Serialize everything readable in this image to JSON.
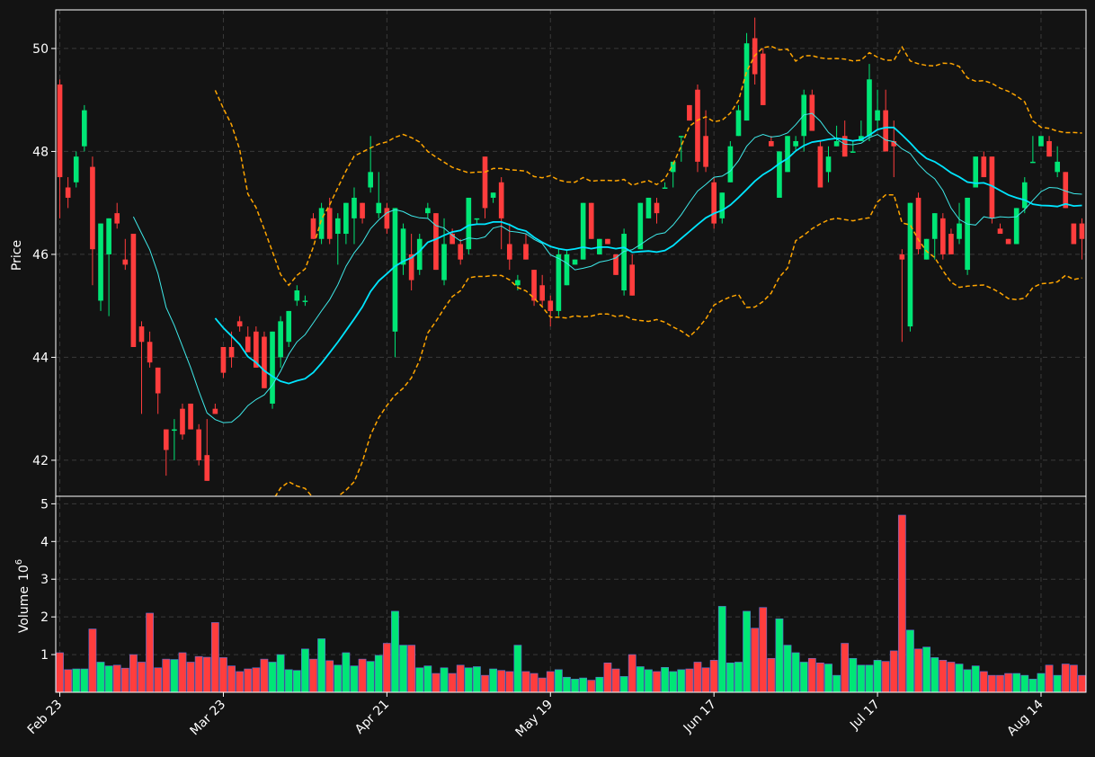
{
  "chart_data": {
    "type": "candlestick",
    "theme": {
      "background": "#131313",
      "up_color": "#00e676",
      "down_color": "#ff3d3d",
      "ma_fast_color": "#3ee8e8",
      "ma_slow_color": "#00e5ff",
      "band_color": "#ffa500",
      "grid_color": "#3a3a3a",
      "axis_text_color": "#ffffff"
    },
    "price_axis": {
      "label": "Price",
      "ylim": [
        41.3,
        50.75
      ],
      "ticks": [
        42,
        44,
        46,
        48,
        50
      ]
    },
    "volume_axis": {
      "label": "Volume",
      "unit_suffix": "6",
      "ylim": [
        0,
        5.2
      ],
      "ticks": [
        1,
        2,
        3,
        4,
        5
      ]
    },
    "x_ticks": [
      {
        "index": 0,
        "label": "Feb 23"
      },
      {
        "index": 20,
        "label": "Mar 23"
      },
      {
        "index": 40,
        "label": "Apr 21"
      },
      {
        "index": 60,
        "label": "May 19"
      },
      {
        "index": 80,
        "label": "Jun 17"
      },
      {
        "index": 100,
        "label": "Jul 17"
      },
      {
        "index": 120,
        "label": "Aug 14"
      }
    ],
    "grid": true,
    "ohlc": [
      [
        49.3,
        49.4,
        46.7,
        47.5
      ],
      [
        47.3,
        47.5,
        46.9,
        47.1
      ],
      [
        47.4,
        48.0,
        47.3,
        47.9
      ],
      [
        48.1,
        48.9,
        48.0,
        48.8
      ],
      [
        47.7,
        47.9,
        45.4,
        46.1
      ],
      [
        45.1,
        46.6,
        44.9,
        46.6
      ],
      [
        46.0,
        46.7,
        44.8,
        46.7
      ],
      [
        46.8,
        47.0,
        46.5,
        46.6
      ],
      [
        45.9,
        46.3,
        45.7,
        45.8
      ],
      [
        46.4,
        46.4,
        44.2,
        44.2
      ],
      [
        44.6,
        44.7,
        42.9,
        44.3
      ],
      [
        44.3,
        44.5,
        43.8,
        43.9
      ],
      [
        43.8,
        43.8,
        42.9,
        43.3
      ],
      [
        42.6,
        42.6,
        41.7,
        42.2
      ],
      [
        42.6,
        42.8,
        42.0,
        42.6
      ],
      [
        43.0,
        43.1,
        42.4,
        42.5
      ],
      [
        43.1,
        43.1,
        42.6,
        42.6
      ],
      [
        42.6,
        42.7,
        41.9,
        42.0
      ],
      [
        42.1,
        42.8,
        41.6,
        41.6
      ],
      [
        43.0,
        43.1,
        42.9,
        42.9
      ],
      [
        44.2,
        44.2,
        43.6,
        43.7
      ],
      [
        44.2,
        44.5,
        43.8,
        44.0
      ],
      [
        44.7,
        44.8,
        44.5,
        44.6
      ],
      [
        44.4,
        44.6,
        44.1,
        44.1
      ],
      [
        44.5,
        44.6,
        43.8,
        43.8
      ],
      [
        44.4,
        44.5,
        43.4,
        43.4
      ],
      [
        43.1,
        44.5,
        43.0,
        44.5
      ],
      [
        44.0,
        44.8,
        43.8,
        44.7
      ],
      [
        44.3,
        44.9,
        44.2,
        44.9
      ],
      [
        45.1,
        45.4,
        45.0,
        45.3
      ],
      [
        45.1,
        45.2,
        45.0,
        45.1
      ],
      [
        46.7,
        46.8,
        46.3,
        46.3
      ],
      [
        46.3,
        47.0,
        46.2,
        46.9
      ],
      [
        46.9,
        47.1,
        46.2,
        46.3
      ],
      [
        46.4,
        46.8,
        45.8,
        46.7
      ],
      [
        46.4,
        47.0,
        46.2,
        47.0
      ],
      [
        46.7,
        47.3,
        46.2,
        47.1
      ],
      [
        47.0,
        47.0,
        46.6,
        46.7
      ],
      [
        47.3,
        48.3,
        47.2,
        47.6
      ],
      [
        46.8,
        47.6,
        46.7,
        47.0
      ],
      [
        46.9,
        47.0,
        46.4,
        46.5
      ],
      [
        44.5,
        46.9,
        44.0,
        46.9
      ],
      [
        45.8,
        46.6,
        45.6,
        46.5
      ],
      [
        46.0,
        46.4,
        45.3,
        45.5
      ],
      [
        45.7,
        46.4,
        45.6,
        46.3
      ],
      [
        46.8,
        47.0,
        46.7,
        46.9
      ],
      [
        46.8,
        46.8,
        45.7,
        45.7
      ],
      [
        45.5,
        46.7,
        45.4,
        46.2
      ],
      [
        46.4,
        46.5,
        46.2,
        46.2
      ],
      [
        46.2,
        46.3,
        45.8,
        45.9
      ],
      [
        46.1,
        47.1,
        46.0,
        47.1
      ],
      [
        46.7,
        46.7,
        46.6,
        46.7
      ],
      [
        47.9,
        47.9,
        46.7,
        46.9
      ],
      [
        47.1,
        47.2,
        47.0,
        47.2
      ],
      [
        47.4,
        47.5,
        46.1,
        46.7
      ],
      [
        46.2,
        46.6,
        45.7,
        45.9
      ],
      [
        45.4,
        45.6,
        45.3,
        45.5
      ],
      [
        46.2,
        46.4,
        45.9,
        45.9
      ],
      [
        45.7,
        45.7,
        45.0,
        45.1
      ],
      [
        45.4,
        45.6,
        45.0,
        45.1
      ],
      [
        45.1,
        45.2,
        44.6,
        44.9
      ],
      [
        44.9,
        46.1,
        44.8,
        46.0
      ],
      [
        45.4,
        46.1,
        45.4,
        46.0
      ],
      [
        45.8,
        45.9,
        45.8,
        45.9
      ],
      [
        45.9,
        47.0,
        45.9,
        47.0
      ],
      [
        47.0,
        47.0,
        46.3,
        46.3
      ],
      [
        46.0,
        46.3,
        46.0,
        46.3
      ],
      [
        46.3,
        46.3,
        46.2,
        46.2
      ],
      [
        46.0,
        46.0,
        45.6,
        45.6
      ],
      [
        45.3,
        46.5,
        45.2,
        46.4
      ],
      [
        45.8,
        46.0,
        45.2,
        45.2
      ],
      [
        46.1,
        47.0,
        46.1,
        47.0
      ],
      [
        46.7,
        47.1,
        46.7,
        47.1
      ],
      [
        47.0,
        47.1,
        46.6,
        46.8
      ],
      [
        47.3,
        47.4,
        47.3,
        47.3
      ],
      [
        47.6,
        47.8,
        47.3,
        47.8
      ],
      [
        48.3,
        48.3,
        47.8,
        48.3
      ],
      [
        48.9,
        48.9,
        48.6,
        48.6
      ],
      [
        49.2,
        49.3,
        47.6,
        47.8
      ],
      [
        48.3,
        48.8,
        47.6,
        47.7
      ],
      [
        47.4,
        47.5,
        46.5,
        46.6
      ],
      [
        46.7,
        47.2,
        46.6,
        47.2
      ],
      [
        47.4,
        48.2,
        47.4,
        48.1
      ],
      [
        48.3,
        48.9,
        48.3,
        48.8
      ],
      [
        48.6,
        50.3,
        48.6,
        50.1
      ],
      [
        50.2,
        50.6,
        49.3,
        49.5
      ],
      [
        49.9,
        50.0,
        48.9,
        48.9
      ],
      [
        48.2,
        48.3,
        48.1,
        48.1
      ],
      [
        47.1,
        48.0,
        47.1,
        48.0
      ],
      [
        47.6,
        48.3,
        47.6,
        48.3
      ],
      [
        48.1,
        48.3,
        48.0,
        48.2
      ],
      [
        48.3,
        49.2,
        48.0,
        49.1
      ],
      [
        49.1,
        49.2,
        48.4,
        48.4
      ],
      [
        48.1,
        48.2,
        47.3,
        47.3
      ],
      [
        47.6,
        48.1,
        47.4,
        47.9
      ],
      [
        48.1,
        48.5,
        48.1,
        48.2
      ],
      [
        48.3,
        48.6,
        47.9,
        47.9
      ],
      [
        48.0,
        48.2,
        48.0,
        48.0
      ],
      [
        48.2,
        48.6,
        48.2,
        48.3
      ],
      [
        48.3,
        49.7,
        48.2,
        49.4
      ],
      [
        48.6,
        49.2,
        48.4,
        48.8
      ],
      [
        48.8,
        49.2,
        48.0,
        48.0
      ],
      [
        48.2,
        48.6,
        47.5,
        48.1
      ],
      [
        46.0,
        46.1,
        44.3,
        45.9
      ],
      [
        44.6,
        47.0,
        44.5,
        47.0
      ],
      [
        47.1,
        47.2,
        46.0,
        46.1
      ],
      [
        45.9,
        46.3,
        45.9,
        46.3
      ],
      [
        46.3,
        46.8,
        45.9,
        46.8
      ],
      [
        46.7,
        46.8,
        45.9,
        46.0
      ],
      [
        46.4,
        46.5,
        46.0,
        46.0
      ],
      [
        46.3,
        47.0,
        46.2,
        46.6
      ],
      [
        45.7,
        47.1,
        45.6,
        47.1
      ],
      [
        47.3,
        47.9,
        47.3,
        47.9
      ],
      [
        47.9,
        48.0,
        47.5,
        47.5
      ],
      [
        47.9,
        47.9,
        46.6,
        46.7
      ],
      [
        46.5,
        46.6,
        46.4,
        46.4
      ],
      [
        46.3,
        46.3,
        46.2,
        46.2
      ],
      [
        46.2,
        46.9,
        46.2,
        46.9
      ],
      [
        46.9,
        47.5,
        46.8,
        47.4
      ],
      [
        47.8,
        48.3,
        47.8,
        47.8
      ],
      [
        48.1,
        48.3,
        48.1,
        48.3
      ],
      [
        48.2,
        48.3,
        47.9,
        47.9
      ],
      [
        47.6,
        48.1,
        47.5,
        47.8
      ],
      [
        47.6,
        47.6,
        46.9,
        46.9
      ],
      [
        46.6,
        46.6,
        46.2,
        46.2
      ],
      [
        46.6,
        46.7,
        45.9,
        46.3
      ]
    ],
    "volume": [
      1.05,
      0.6,
      0.62,
      0.62,
      1.68,
      0.8,
      0.7,
      0.72,
      0.64,
      1.0,
      0.8,
      2.1,
      0.65,
      0.88,
      0.87,
      1.05,
      0.8,
      0.95,
      0.93,
      1.85,
      0.92,
      0.7,
      0.55,
      0.62,
      0.65,
      0.88,
      0.8,
      1.0,
      0.6,
      0.58,
      1.15,
      0.88,
      1.42,
      0.84,
      0.72,
      1.05,
      0.7,
      0.88,
      0.82,
      0.98,
      1.3,
      2.15,
      1.25,
      1.25,
      0.65,
      0.7,
      0.5,
      0.65,
      0.5,
      0.72,
      0.65,
      0.68,
      0.45,
      0.62,
      0.58,
      0.55,
      1.25,
      0.55,
      0.5,
      0.38,
      0.55,
      0.6,
      0.4,
      0.35,
      0.38,
      0.32,
      0.4,
      0.78,
      0.62,
      0.42,
      1.0,
      0.68,
      0.6,
      0.55,
      0.66,
      0.55,
      0.6,
      0.62,
      0.8,
      0.65,
      0.85,
      2.28,
      0.78,
      0.8,
      2.15,
      1.7,
      2.25,
      0.9,
      1.95,
      1.25,
      1.05,
      0.8,
      0.9,
      0.78,
      0.75,
      0.45,
      1.3,
      0.9,
      0.72,
      0.72,
      0.85,
      0.82,
      1.1,
      4.7,
      1.65,
      1.15,
      1.2,
      0.92,
      0.85,
      0.8,
      0.75,
      0.6,
      0.7,
      0.55,
      0.45,
      0.45,
      0.5,
      0.5,
      0.45,
      0.35,
      0.5,
      0.72,
      0.45,
      0.75,
      0.72,
      0.45
    ],
    "overlays": {
      "ma_fast": {
        "window": 10,
        "color": "#3ee8e8"
      },
      "ma_slow": {
        "window": 20,
        "color": "#00e5ff"
      },
      "bollinger": {
        "window": 20,
        "std": 2,
        "color": "#ffa500"
      }
    }
  }
}
